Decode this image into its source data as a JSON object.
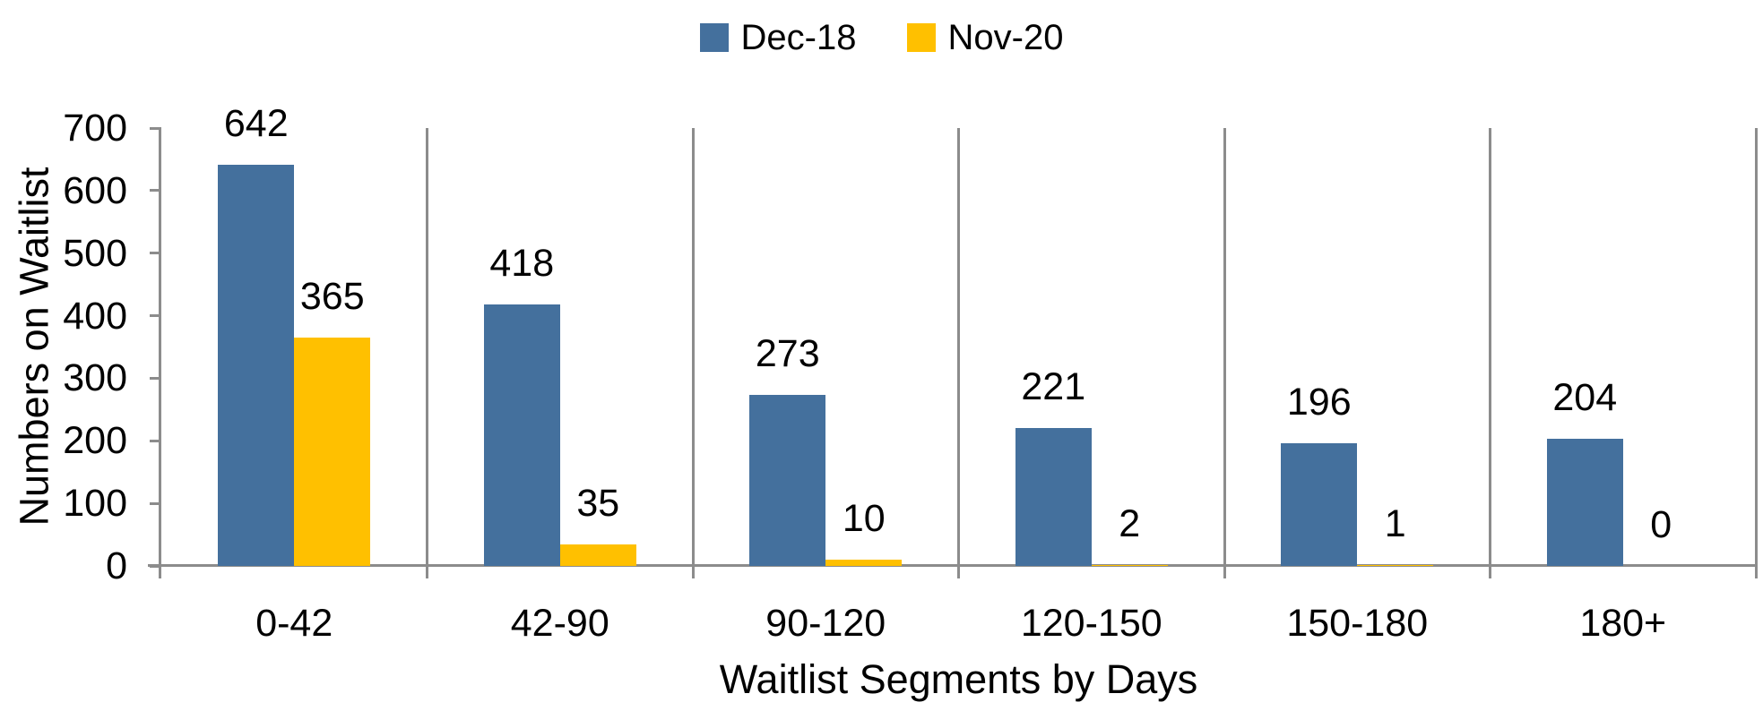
{
  "chart_data": {
    "type": "bar",
    "title": "",
    "categories": [
      "0-42",
      "42-90",
      "90-120",
      "120-150",
      "150-180",
      "180+"
    ],
    "series": [
      {
        "name": "Dec-18",
        "color": "#44709D",
        "values": [
          642,
          418,
          273,
          221,
          196,
          204
        ]
      },
      {
        "name": "Nov-20",
        "color": "#FFC000",
        "values": [
          365,
          35,
          10,
          2,
          1,
          0
        ]
      }
    ],
    "data_labels": {
      "Dec-18": [
        "642",
        "418",
        "273",
        "221",
        "196",
        "204"
      ],
      "Nov-20": [
        "365",
        "35",
        "10",
        "2",
        "1",
        "0"
      ]
    },
    "xlabel": "Waitlist Segments by Days",
    "ylabel": "Numbers on Waitlist",
    "ylim": [
      0,
      700
    ],
    "ytick_step": 100,
    "ytick_labels": [
      "0",
      "100",
      "200",
      "300",
      "400",
      "500",
      "600",
      "700"
    ],
    "grid": "vertical category dividers only",
    "legend_position": "top-center",
    "colors": {
      "axis": "#8C8C8C",
      "divider": "#8C8C8C",
      "text": "#000000",
      "background": "#FFFFFF"
    }
  }
}
